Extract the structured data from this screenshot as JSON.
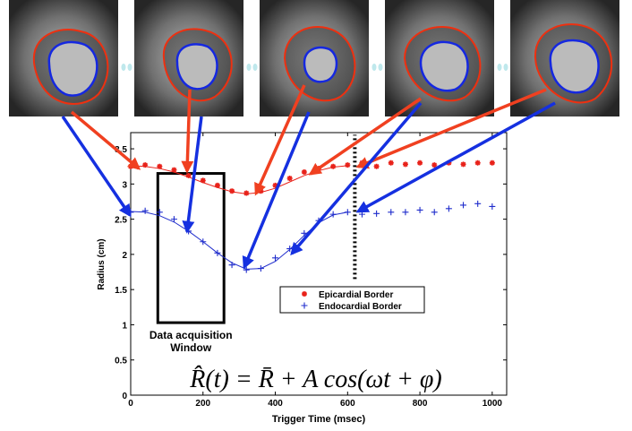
{
  "chart_data": {
    "type": "scatter",
    "xlabel": "Trigger Time (msec)",
    "ylabel": "Radius (cm)",
    "xlim": [
      0,
      1040
    ],
    "ylim": [
      0,
      3.73
    ],
    "xticks": [
      0,
      200,
      400,
      600,
      800,
      1000
    ],
    "yticks": [
      0,
      0.5,
      1,
      1.5,
      2,
      2.5,
      3,
      3.5
    ],
    "legend": "center",
    "x": [
      0,
      40,
      80,
      120,
      160,
      200,
      240,
      280,
      320,
      360,
      400,
      440,
      480,
      520,
      560,
      600,
      640,
      680,
      720,
      760,
      800,
      840,
      880,
      920,
      960,
      1000
    ],
    "series": [
      {
        "name": "Epicardial Border",
        "color": "#e8221a",
        "marker": "*",
        "values": [
          3.25,
          3.27,
          3.25,
          3.2,
          3.12,
          3.05,
          2.98,
          2.9,
          2.87,
          2.9,
          2.98,
          3.08,
          3.17,
          3.22,
          3.25,
          3.27,
          3.3,
          3.25,
          3.3,
          3.28,
          3.3,
          3.27,
          3.3,
          3.28,
          3.3,
          3.3
        ],
        "fit": [
          3.26,
          3.25,
          3.22,
          3.17,
          3.1,
          3.02,
          2.95,
          2.89,
          2.86,
          2.88,
          2.94,
          3.03,
          3.12,
          3.19,
          3.24,
          3.26,
          null,
          null,
          null,
          null,
          null,
          null,
          null,
          null,
          null,
          null
        ]
      },
      {
        "name": "Endocardial Border",
        "color": "#1f2ccc",
        "marker": "+",
        "values": [
          2.6,
          2.62,
          2.6,
          2.5,
          2.33,
          2.18,
          2.02,
          1.85,
          1.78,
          1.8,
          1.95,
          2.08,
          2.3,
          2.48,
          2.57,
          2.6,
          2.57,
          2.58,
          2.6,
          2.6,
          2.63,
          2.6,
          2.65,
          2.7,
          2.72,
          2.68
        ],
        "fit": [
          2.61,
          2.6,
          2.55,
          2.46,
          2.33,
          2.18,
          2.02,
          1.88,
          1.79,
          1.8,
          1.9,
          2.07,
          2.27,
          2.45,
          2.56,
          2.6,
          null,
          null,
          null,
          null,
          null,
          null,
          null,
          null,
          null,
          null
        ]
      }
    ],
    "acquisition_window": {
      "x": [
        75,
        258
      ],
      "y": [
        1.03,
        3.15
      ],
      "label": "Data acquisition Window"
    },
    "marker_line": {
      "x": 620,
      "y": [
        1.65,
        3.7
      ]
    },
    "formula": "R̂(t) = R̄ + A cos(ωt + φ)"
  }
}
